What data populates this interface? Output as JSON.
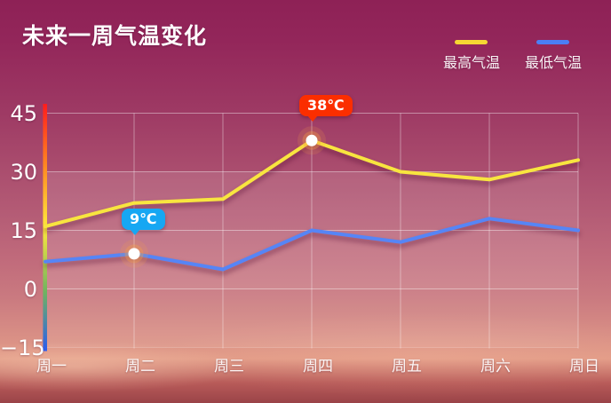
{
  "window": {
    "title": "未来一周气温变化"
  },
  "legend": {
    "items": [
      {
        "label": "最高气温",
        "color": "#f6d733"
      },
      {
        "label": "最低气温",
        "color": "#4b7ef5"
      }
    ]
  },
  "chart_data": {
    "type": "line",
    "title": "未来一周气温变化",
    "categories": [
      "周一",
      "周二",
      "周三",
      "周四",
      "周五",
      "周六",
      "周日"
    ],
    "series": [
      {
        "name": "最高气温",
        "color": "#f8e53f",
        "values": [
          16,
          22,
          23,
          38,
          30,
          28,
          33
        ],
        "marker_points": [
          3
        ]
      },
      {
        "name": "最低气温",
        "color": "#5685f6",
        "values": [
          7,
          9,
          5,
          15,
          12,
          18,
          15
        ],
        "marker_points": [
          1
        ]
      }
    ],
    "annotations": [
      {
        "series": 0,
        "point": 3,
        "text": "38℃",
        "bubble_color": "#fb2e00"
      },
      {
        "series": 1,
        "point": 1,
        "text": "9℃",
        "bubble_color": "#16a7f3"
      }
    ],
    "y_ticks": [
      "45",
      "30",
      "15",
      "0",
      "−15"
    ],
    "y_tick_values": [
      45,
      30,
      15,
      0,
      -15
    ],
    "ylim": [
      -15,
      45
    ],
    "xlabel": "",
    "ylabel": "",
    "grid": true,
    "legend_position": "top-right",
    "axis_gradient_colors": [
      "#ff1c1c",
      "#ff8c22",
      "#ffe93c",
      "#6fb45f",
      "#2b5cf0"
    ]
  }
}
